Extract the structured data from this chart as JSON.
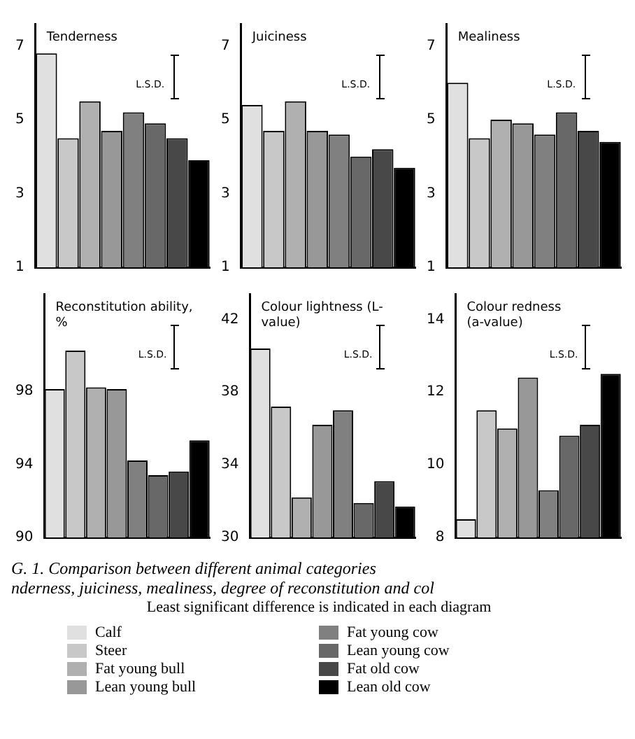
{
  "chart_data": [
    {
      "type": "bar",
      "title": "Tenderness",
      "categories": [
        null
      ],
      "ylim": [
        1,
        7.6
      ],
      "yticks": [
        1,
        3,
        5,
        7
      ],
      "tick_labels": "y",
      "legend": "bottom",
      "annotations": [
        "L.S.D."
      ],
      "series": [
        {
          "name": "Calf",
          "color": "#e0e0e0",
          "values": [
            6.8
          ]
        },
        {
          "name": "Steer",
          "color": "#c8c8c8",
          "values": [
            4.5
          ]
        },
        {
          "name": "Fat young bull",
          "color": "#b0b0b0",
          "values": [
            5.5
          ]
        },
        {
          "name": "Lean young bull",
          "color": "#989898",
          "values": [
            4.7
          ]
        },
        {
          "name": "Fat young cow",
          "color": "#808080",
          "values": [
            5.2
          ]
        },
        {
          "name": "Lean young cow",
          "color": "#686868",
          "values": [
            4.9
          ]
        },
        {
          "name": "Fat old cow",
          "color": "#484848",
          "values": [
            4.5
          ]
        },
        {
          "name": "Lean old cow",
          "color": "#000000",
          "values": [
            3.9
          ]
        }
      ]
    },
    {
      "type": "bar",
      "title": "Juiciness",
      "categories": [
        null
      ],
      "ylim": [
        1,
        7.6
      ],
      "yticks": [
        1,
        3,
        5,
        7
      ],
      "tick_labels": "y",
      "annotations": [
        "L.S.D."
      ],
      "series": [
        {
          "color": "#e0e0e0",
          "values": [
            5.4
          ]
        },
        {
          "color": "#c8c8c8",
          "values": [
            4.7
          ]
        },
        {
          "color": "#b0b0b0",
          "values": [
            5.5
          ]
        },
        {
          "color": "#989898",
          "values": [
            4.7
          ]
        },
        {
          "color": "#808080",
          "values": [
            4.6
          ]
        },
        {
          "color": "#686868",
          "values": [
            4.0
          ]
        },
        {
          "color": "#484848",
          "values": [
            4.2
          ]
        },
        {
          "color": "#000000",
          "values": [
            3.7
          ]
        }
      ]
    },
    {
      "type": "bar",
      "title": "Mealiness",
      "categories": [
        null
      ],
      "ylim": [
        1,
        7.6
      ],
      "yticks": [
        1,
        3,
        5,
        7
      ],
      "tick_labels": "y",
      "annotations": [
        "L.S.D."
      ],
      "series": [
        {
          "color": "#e0e0e0",
          "values": [
            6.0
          ]
        },
        {
          "color": "#c8c8c8",
          "values": [
            4.5
          ]
        },
        {
          "color": "#b0b0b0",
          "values": [
            5.0
          ]
        },
        {
          "color": "#989898",
          "values": [
            4.9
          ]
        },
        {
          "color": "#808080",
          "values": [
            4.6
          ]
        },
        {
          "color": "#686868",
          "values": [
            5.2
          ]
        },
        {
          "color": "#484848",
          "values": [
            4.7
          ]
        },
        {
          "color": "#000000",
          "values": [
            4.4
          ]
        }
      ]
    },
    {
      "type": "bar",
      "title": "Reconstitution ability, %",
      "categories": [
        null
      ],
      "ylim": [
        90,
        103.3
      ],
      "yticks": [
        90,
        94,
        98
      ],
      "tick_labels": "y",
      "annotations": [
        "L.S.D."
      ],
      "series": [
        {
          "color": "#e0e0e0",
          "values": [
            98.1
          ]
        },
        {
          "color": "#c8c8c8",
          "values": [
            100.2
          ]
        },
        {
          "color": "#b0b0b0",
          "values": [
            98.2
          ]
        },
        {
          "color": "#989898",
          "values": [
            98.1
          ]
        },
        {
          "color": "#808080",
          "values": [
            94.2
          ]
        },
        {
          "color": "#686868",
          "values": [
            93.4
          ]
        },
        {
          "color": "#484848",
          "values": [
            93.6
          ]
        },
        {
          "color": "#000000",
          "values": [
            95.3
          ]
        }
      ]
    },
    {
      "type": "bar",
      "title": "Colour lightness (L- value)",
      "categories": [
        null
      ],
      "ylim": [
        30,
        43.4
      ],
      "yticks": [
        30,
        34,
        38,
        42
      ],
      "tick_labels": "y",
      "annotations": [
        "L.S.D."
      ],
      "series": [
        {
          "color": "#e0e0e0",
          "values": [
            40.4
          ]
        },
        {
          "color": "#c8c8c8",
          "values": [
            37.2
          ]
        },
        {
          "color": "#b0b0b0",
          "values": [
            32.2
          ]
        },
        {
          "color": "#989898",
          "values": [
            36.2
          ]
        },
        {
          "color": "#808080",
          "values": [
            37.0
          ]
        },
        {
          "color": "#686868",
          "values": [
            31.9
          ]
        },
        {
          "color": "#484848",
          "values": [
            33.1
          ]
        },
        {
          "color": "#000000",
          "values": [
            31.7
          ]
        }
      ]
    },
    {
      "type": "bar",
      "title": "Colour redness (a-value)",
      "categories": [
        null
      ],
      "ylim": [
        8,
        14.7
      ],
      "yticks": [
        8,
        10,
        12,
        14
      ],
      "tick_labels": "y",
      "annotations": [
        "L.S.D.",
        "G. 1. Comparison between different animal categories",
        "nderness, juiciness, mealiness, degree of reconstitution and col",
        "Least significant difference is indicated in each diagram"
      ],
      "series": [
        {
          "color": "#e0e0e0",
          "values": [
            8.5
          ]
        },
        {
          "color": "#c8c8c8",
          "values": [
            11.5
          ]
        },
        {
          "color": "#b0b0b0",
          "values": [
            11.0
          ]
        },
        {
          "color": "#989898",
          "values": [
            12.4
          ]
        },
        {
          "color": "#808080",
          "values": [
            9.3
          ]
        },
        {
          "color": "#686868",
          "values": [
            10.8
          ]
        },
        {
          "color": "#484848",
          "values": [
            11.1
          ]
        },
        {
          "color": "#000000",
          "values": [
            12.5
          ]
        }
      ]
    }
  ]
}
